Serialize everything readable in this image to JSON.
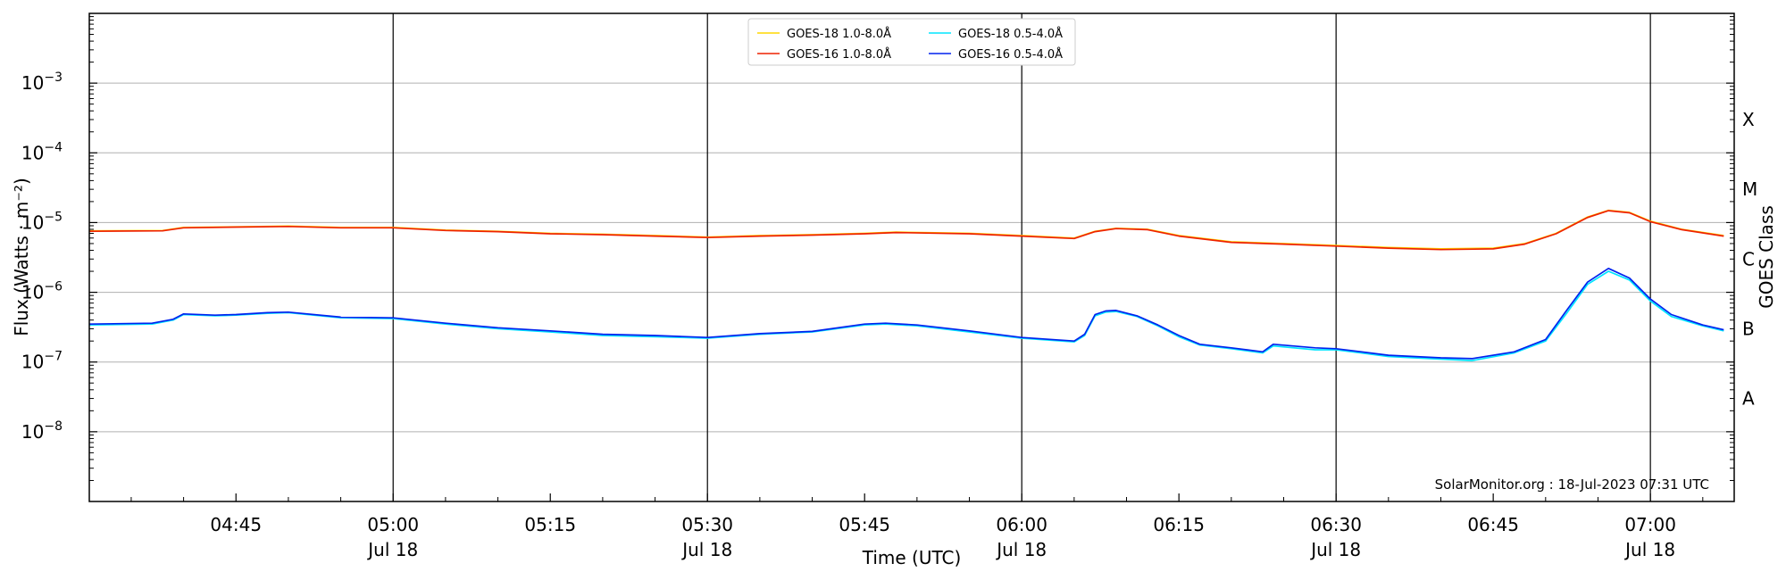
{
  "chart_data": {
    "type": "line",
    "xlabel": "Time (UTC)",
    "ylabel": "Flux (Watts · m⁻²)",
    "ylabel_right": "GOES Class",
    "yscale": "log",
    "ylim": [
      1e-09,
      0.01
    ],
    "y_ticks": [
      {
        "value": 1e-08,
        "base": "10",
        "exp": "−8"
      },
      {
        "value": 1e-07,
        "base": "10",
        "exp": "−7"
      },
      {
        "value": 1e-06,
        "base": "10",
        "exp": "−6"
      },
      {
        "value": 1e-05,
        "base": "10",
        "exp": "−5"
      },
      {
        "value": 0.0001,
        "base": "10",
        "exp": "−4"
      },
      {
        "value": 0.001,
        "base": "10",
        "exp": "−3"
      }
    ],
    "xlim": [
      "04:31",
      "07:08"
    ],
    "x_ticks": [
      {
        "time": "04:45",
        "label": "04:45",
        "date": ""
      },
      {
        "time": "05:00",
        "label": "05:00",
        "date": "Jul 18"
      },
      {
        "time": "05:15",
        "label": "05:15",
        "date": ""
      },
      {
        "time": "05:30",
        "label": "05:30",
        "date": "Jul 18"
      },
      {
        "time": "05:45",
        "label": "05:45",
        "date": ""
      },
      {
        "time": "06:00",
        "label": "06:00",
        "date": "Jul 18"
      },
      {
        "time": "06:15",
        "label": "06:15",
        "date": ""
      },
      {
        "time": "06:30",
        "label": "06:30",
        "date": "Jul 18"
      },
      {
        "time": "06:45",
        "label": "06:45",
        "date": ""
      },
      {
        "time": "07:00",
        "label": "07:00",
        "date": "Jul 18"
      }
    ],
    "vertical_lines": [
      "05:00",
      "05:30",
      "06:00",
      "06:30",
      "07:00"
    ],
    "goes_classes": [
      {
        "label": "A",
        "value": 3e-08
      },
      {
        "label": "B",
        "value": 3e-07
      },
      {
        "label": "C",
        "value": 3e-06
      },
      {
        "label": "M",
        "value": 3e-05
      },
      {
        "label": "X",
        "value": 0.0003
      }
    ],
    "grid": "horizontal",
    "legend_position": "top-center",
    "credit": "SolarMonitor.org : 18-Jul-2023 07:31 UTC",
    "series": [
      {
        "name": "GOES-18 1.0-8.0Å",
        "color": "#ffd700",
        "points": [
          [
            "04:31",
            7.6e-06
          ],
          [
            "04:38",
            7.7e-06
          ],
          [
            "04:40",
            8.5e-06
          ],
          [
            "04:45",
            8.7e-06
          ],
          [
            "04:50",
            8.9e-06
          ],
          [
            "04:55",
            8.5e-06
          ],
          [
            "05:00",
            8.5e-06
          ],
          [
            "05:05",
            7.8e-06
          ],
          [
            "05:10",
            7.5e-06
          ],
          [
            "05:15",
            7e-06
          ],
          [
            "05:20",
            6.8e-06
          ],
          [
            "05:25",
            6.5e-06
          ],
          [
            "05:30",
            6.2e-06
          ],
          [
            "05:35",
            6.5e-06
          ],
          [
            "05:40",
            6.7e-06
          ],
          [
            "05:45",
            7e-06
          ],
          [
            "05:48",
            7.3e-06
          ],
          [
            "05:55",
            7e-06
          ],
          [
            "06:00",
            6.5e-06
          ],
          [
            "06:05",
            6e-06
          ],
          [
            "06:07",
            7.5e-06
          ],
          [
            "06:09",
            8.3e-06
          ],
          [
            "06:12",
            8e-06
          ],
          [
            "06:15",
            6.5e-06
          ],
          [
            "06:20",
            5.3e-06
          ],
          [
            "06:25",
            5e-06
          ],
          [
            "06:30",
            4.7e-06
          ],
          [
            "06:35",
            4.4e-06
          ],
          [
            "06:40",
            4.2e-06
          ],
          [
            "06:45",
            4.3e-06
          ],
          [
            "06:48",
            5e-06
          ],
          [
            "06:51",
            7e-06
          ],
          [
            "06:54",
            1.2e-05
          ],
          [
            "06:56",
            1.5e-05
          ],
          [
            "06:58",
            1.4e-05
          ],
          [
            "07:00",
            1.05e-05
          ],
          [
            "07:03",
            8e-06
          ],
          [
            "07:07",
            6.5e-06
          ]
        ]
      },
      {
        "name": "GOES-16 1.0-8.0Å",
        "color": "#ee2200",
        "points": [
          [
            "04:31",
            7.5e-06
          ],
          [
            "04:38",
            7.6e-06
          ],
          [
            "04:40",
            8.4e-06
          ],
          [
            "04:45",
            8.6e-06
          ],
          [
            "04:50",
            8.8e-06
          ],
          [
            "04:55",
            8.4e-06
          ],
          [
            "05:00",
            8.4e-06
          ],
          [
            "05:05",
            7.7e-06
          ],
          [
            "05:10",
            7.4e-06
          ],
          [
            "05:15",
            6.9e-06
          ],
          [
            "05:20",
            6.7e-06
          ],
          [
            "05:25",
            6.4e-06
          ],
          [
            "05:30",
            6.1e-06
          ],
          [
            "05:35",
            6.4e-06
          ],
          [
            "05:40",
            6.6e-06
          ],
          [
            "05:45",
            6.9e-06
          ],
          [
            "05:48",
            7.2e-06
          ],
          [
            "05:55",
            6.9e-06
          ],
          [
            "06:00",
            6.4e-06
          ],
          [
            "06:05",
            5.9e-06
          ],
          [
            "06:07",
            7.4e-06
          ],
          [
            "06:09",
            8.2e-06
          ],
          [
            "06:12",
            7.9e-06
          ],
          [
            "06:15",
            6.4e-06
          ],
          [
            "06:20",
            5.2e-06
          ],
          [
            "06:25",
            4.9e-06
          ],
          [
            "06:30",
            4.6e-06
          ],
          [
            "06:35",
            4.3e-06
          ],
          [
            "06:40",
            4.1e-06
          ],
          [
            "06:45",
            4.2e-06
          ],
          [
            "06:48",
            4.9e-06
          ],
          [
            "06:51",
            6.9e-06
          ],
          [
            "06:54",
            1.18e-05
          ],
          [
            "06:56",
            1.48e-05
          ],
          [
            "06:58",
            1.38e-05
          ],
          [
            "07:00",
            1.03e-05
          ],
          [
            "07:03",
            7.9e-06
          ],
          [
            "07:07",
            6.4e-06
          ]
        ]
      },
      {
        "name": "GOES-18 0.5-4.0Å",
        "color": "#00e5ff",
        "points": [
          [
            "04:31",
            3.4e-07
          ],
          [
            "04:37",
            3.5e-07
          ],
          [
            "04:39",
            4e-07
          ],
          [
            "04:40",
            4.8e-07
          ],
          [
            "04:43",
            4.6e-07
          ],
          [
            "04:45",
            4.7e-07
          ],
          [
            "04:48",
            5e-07
          ],
          [
            "04:50",
            5.1e-07
          ],
          [
            "04:55",
            4.3e-07
          ],
          [
            "05:00",
            4.2e-07
          ],
          [
            "05:05",
            3.5e-07
          ],
          [
            "05:10",
            3e-07
          ],
          [
            "05:15",
            2.7e-07
          ],
          [
            "05:20",
            2.4e-07
          ],
          [
            "05:25",
            2.3e-07
          ],
          [
            "05:30",
            2.2e-07
          ],
          [
            "05:35",
            2.5e-07
          ],
          [
            "05:40",
            2.7e-07
          ],
          [
            "05:45",
            3.4e-07
          ],
          [
            "05:47",
            3.5e-07
          ],
          [
            "05:50",
            3.3e-07
          ],
          [
            "05:55",
            2.7e-07
          ],
          [
            "06:00",
            2.2e-07
          ],
          [
            "06:05",
            1.95e-07
          ],
          [
            "06:06",
            2.4e-07
          ],
          [
            "06:07",
            4.6e-07
          ],
          [
            "06:08",
            5.2e-07
          ],
          [
            "06:09",
            5.3e-07
          ],
          [
            "06:11",
            4.5e-07
          ],
          [
            "06:13",
            3.3e-07
          ],
          [
            "06:15",
            2.3e-07
          ],
          [
            "06:17",
            1.75e-07
          ],
          [
            "06:20",
            1.55e-07
          ],
          [
            "06:23",
            1.35e-07
          ],
          [
            "06:24",
            1.7e-07
          ],
          [
            "06:28",
            1.5e-07
          ],
          [
            "06:30",
            1.5e-07
          ],
          [
            "06:35",
            1.2e-07
          ],
          [
            "06:40",
            1.1e-07
          ],
          [
            "06:43",
            1.05e-07
          ],
          [
            "06:47",
            1.35e-07
          ],
          [
            "06:50",
            2e-07
          ],
          [
            "06:52",
            5e-07
          ],
          [
            "06:54",
            1.3e-06
          ],
          [
            "06:56",
            2e-06
          ],
          [
            "06:58",
            1.5e-06
          ],
          [
            "07:00",
            7.5e-07
          ],
          [
            "07:02",
            4.5e-07
          ],
          [
            "07:05",
            3.3e-07
          ],
          [
            "07:07",
            2.8e-07
          ]
        ]
      },
      {
        "name": "GOES-16 0.5-4.0Å",
        "color": "#0022ee",
        "points": [
          [
            "04:31",
            3.5e-07
          ],
          [
            "04:37",
            3.6e-07
          ],
          [
            "04:39",
            4.1e-07
          ],
          [
            "04:40",
            4.9e-07
          ],
          [
            "04:43",
            4.7e-07
          ],
          [
            "04:45",
            4.8e-07
          ],
          [
            "04:48",
            5.1e-07
          ],
          [
            "04:50",
            5.2e-07
          ],
          [
            "04:55",
            4.4e-07
          ],
          [
            "05:00",
            4.3e-07
          ],
          [
            "05:05",
            3.6e-07
          ],
          [
            "05:10",
            3.1e-07
          ],
          [
            "05:15",
            2.8e-07
          ],
          [
            "05:20",
            2.5e-07
          ],
          [
            "05:25",
            2.4e-07
          ],
          [
            "05:30",
            2.25e-07
          ],
          [
            "05:35",
            2.55e-07
          ],
          [
            "05:40",
            2.75e-07
          ],
          [
            "05:45",
            3.5e-07
          ],
          [
            "05:47",
            3.6e-07
          ],
          [
            "05:50",
            3.4e-07
          ],
          [
            "05:55",
            2.8e-07
          ],
          [
            "06:00",
            2.25e-07
          ],
          [
            "06:05",
            2e-07
          ],
          [
            "06:06",
            2.5e-07
          ],
          [
            "06:07",
            4.8e-07
          ],
          [
            "06:08",
            5.4e-07
          ],
          [
            "06:09",
            5.5e-07
          ],
          [
            "06:11",
            4.6e-07
          ],
          [
            "06:13",
            3.4e-07
          ],
          [
            "06:15",
            2.4e-07
          ],
          [
            "06:17",
            1.8e-07
          ],
          [
            "06:20",
            1.6e-07
          ],
          [
            "06:23",
            1.4e-07
          ],
          [
            "06:24",
            1.8e-07
          ],
          [
            "06:28",
            1.6e-07
          ],
          [
            "06:30",
            1.55e-07
          ],
          [
            "06:35",
            1.25e-07
          ],
          [
            "06:40",
            1.15e-07
          ],
          [
            "06:43",
            1.12e-07
          ],
          [
            "06:47",
            1.4e-07
          ],
          [
            "06:50",
            2.1e-07
          ],
          [
            "06:52",
            5.5e-07
          ],
          [
            "06:54",
            1.4e-06
          ],
          [
            "06:56",
            2.2e-06
          ],
          [
            "06:58",
            1.6e-06
          ],
          [
            "07:00",
            8e-07
          ],
          [
            "07:02",
            4.8e-07
          ],
          [
            "07:05",
            3.4e-07
          ],
          [
            "07:07",
            2.9e-07
          ]
        ]
      }
    ]
  }
}
